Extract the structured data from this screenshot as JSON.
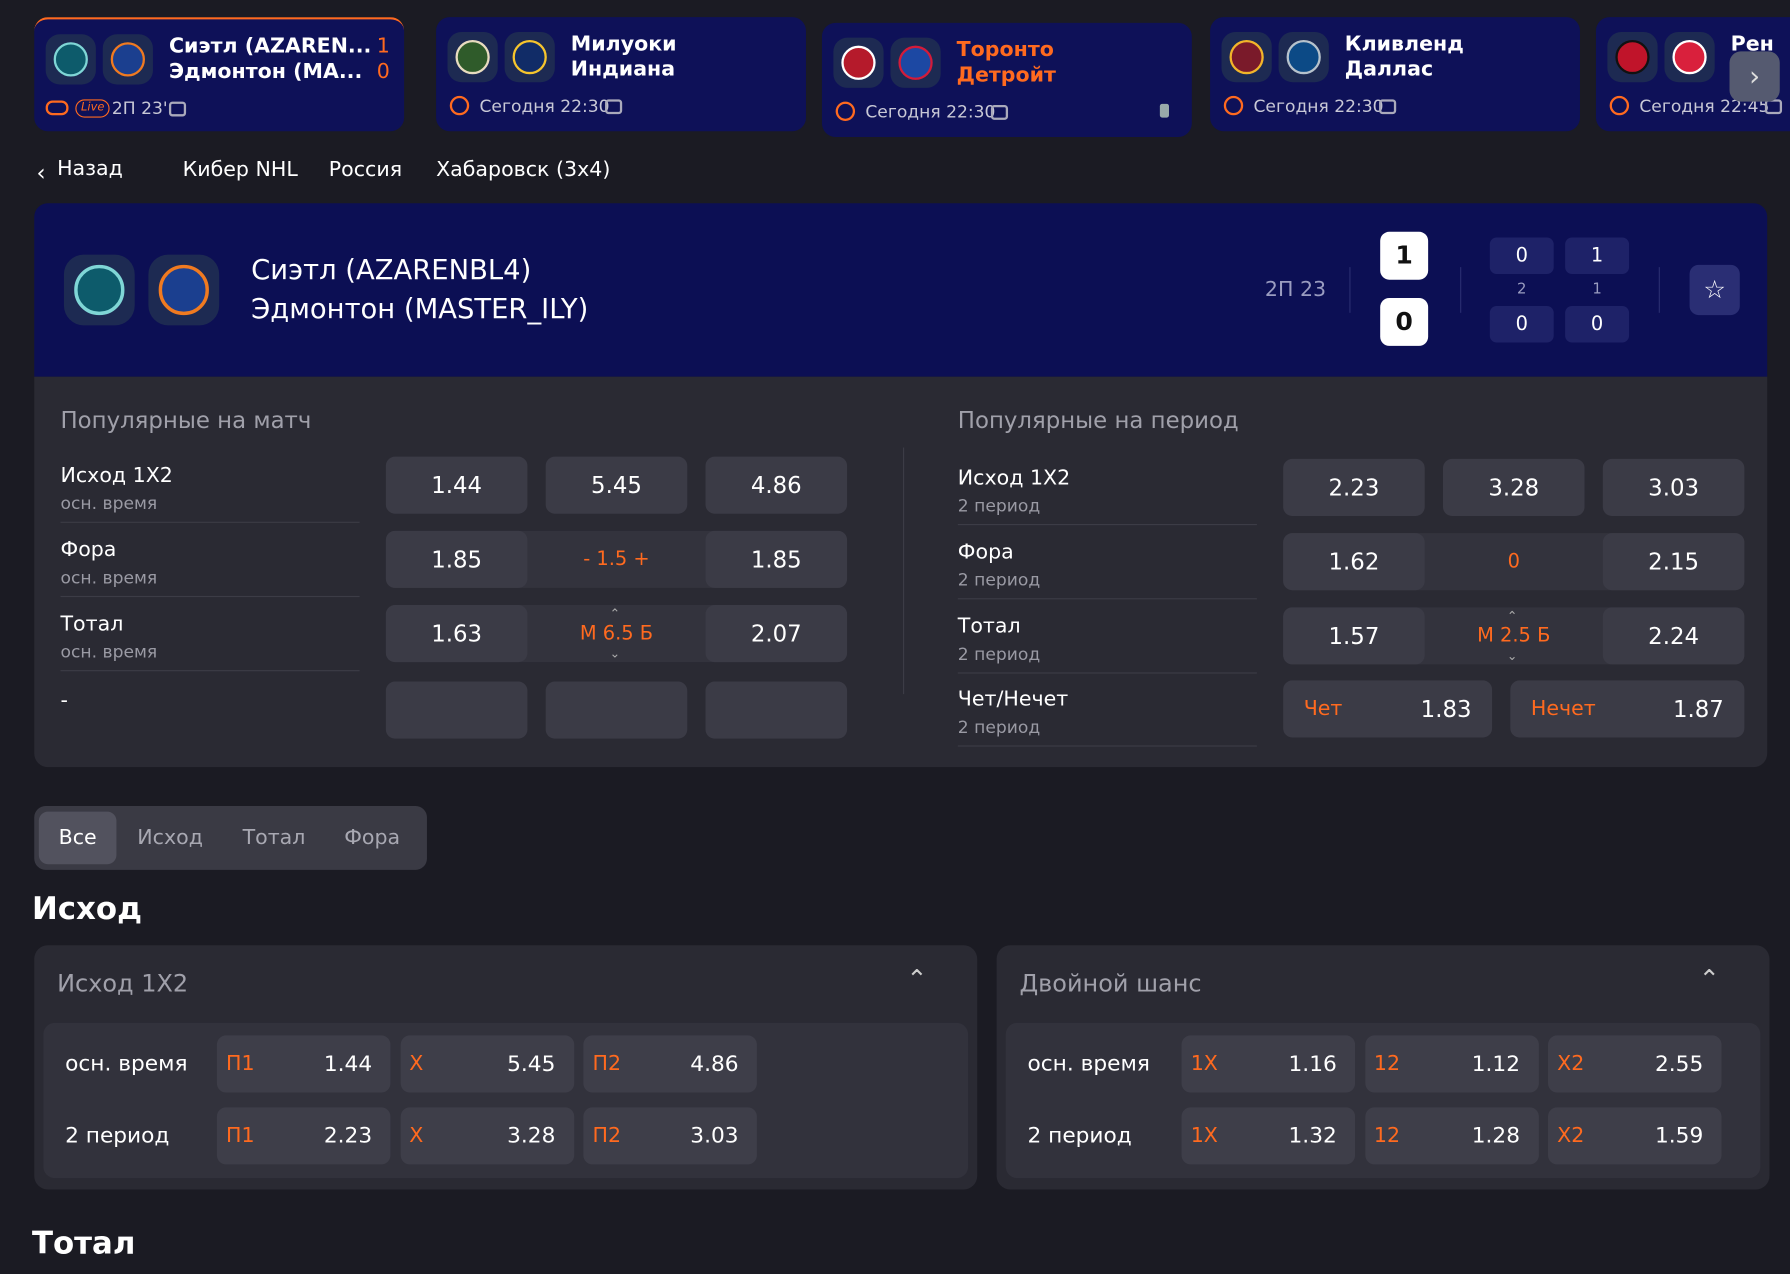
{
  "top_games": [
    {
      "team1": "Сиэтл (AZAREN...",
      "team2": "Эдмонтон (МА...",
      "score1": "1",
      "score2": "0",
      "live": "Live",
      "time": "2П 23'"
    },
    {
      "team1": "Милуоки",
      "team2": "Индиана",
      "time": "Сегодня 22:30"
    },
    {
      "team1": "Торонто",
      "team2": "Детройт",
      "time": "Сегодня 22:30"
    },
    {
      "team1": "Кливленд",
      "team2": "Даллас",
      "time": "Сегодня 22:30"
    },
    {
      "team1": "Рен",
      "team2": "",
      "time": "Сегодня 22:45"
    }
  ],
  "breadcrumb": {
    "back": "Назад",
    "items": [
      "Кибер NHL",
      "Россия",
      "Хабаровск (3x4)"
    ]
  },
  "match": {
    "team1": "Сиэтл (AZARENBL4)",
    "team2": "Эдмонтон (MASTER_ILY)",
    "period": "2П 23",
    "score1": "1",
    "score2": "0",
    "period_scores": [
      {
        "top": "0",
        "mid": "2",
        "bottom": "0"
      },
      {
        "top": "1",
        "mid": "1",
        "bottom": "0"
      }
    ]
  },
  "popular_match": {
    "title": "Популярные на матч",
    "rows": [
      {
        "name": "Исход 1X2",
        "sub": "осн. время",
        "odds": [
          "1.44",
          "5.45",
          "4.86"
        ]
      },
      {
        "name": "Фора",
        "sub": "осн. время",
        "odds": [
          "1.85",
          "1.85"
        ],
        "line": "- 1.5 +"
      },
      {
        "name": "Тотал",
        "sub": "осн. время",
        "odds": [
          "1.63",
          "2.07"
        ],
        "line": "М 6.5 Б"
      },
      {
        "name": "-"
      }
    ]
  },
  "popular_period": {
    "title": "Популярные на период",
    "rows": [
      {
        "name": "Исход 1X2",
        "sub": "2 период",
        "odds": [
          "2.23",
          "3.28",
          "3.03"
        ]
      },
      {
        "name": "Фора",
        "sub": "2 период",
        "odds": [
          "1.62",
          "2.15"
        ],
        "line": "0"
      },
      {
        "name": "Тотал",
        "sub": "2 период",
        "odds": [
          "1.57",
          "2.24"
        ],
        "line": "М 2.5 Б"
      },
      {
        "name": "Чет/Нечет",
        "sub": "2 период",
        "pairs": [
          {
            "label": "Чет",
            "odd": "1.83"
          },
          {
            "label": "Нечет",
            "odd": "1.87"
          }
        ]
      }
    ]
  },
  "tabs": [
    "Все",
    "Исход",
    "Тотал",
    "Фора"
  ],
  "sections": [
    {
      "title": "Исход",
      "markets": [
        {
          "title": "Исход 1X2",
          "rows": [
            {
              "label": "осн. время",
              "outcomes": [
                {
                  "label": "П1",
                  "odd": "1.44"
                },
                {
                  "label": "X",
                  "odd": "5.45"
                },
                {
                  "label": "П2",
                  "odd": "4.86"
                }
              ]
            },
            {
              "label": "2 период",
              "outcomes": [
                {
                  "label": "П1",
                  "odd": "2.23"
                },
                {
                  "label": "X",
                  "odd": "3.28"
                },
                {
                  "label": "П2",
                  "odd": "3.03"
                }
              ]
            }
          ]
        },
        {
          "title": "Двойной шанс",
          "rows": [
            {
              "label": "осн. время",
              "outcomes": [
                {
                  "label": "1X",
                  "odd": "1.16"
                },
                {
                  "label": "12",
                  "odd": "1.12"
                },
                {
                  "label": "X2",
                  "odd": "2.55"
                }
              ]
            },
            {
              "label": "2 период",
              "outcomes": [
                {
                  "label": "1X",
                  "odd": "1.32"
                },
                {
                  "label": "12",
                  "odd": "1.28"
                },
                {
                  "label": "X2",
                  "odd": "1.59"
                }
              ]
            }
          ]
        }
      ]
    },
    {
      "title": "Тотал"
    }
  ]
}
